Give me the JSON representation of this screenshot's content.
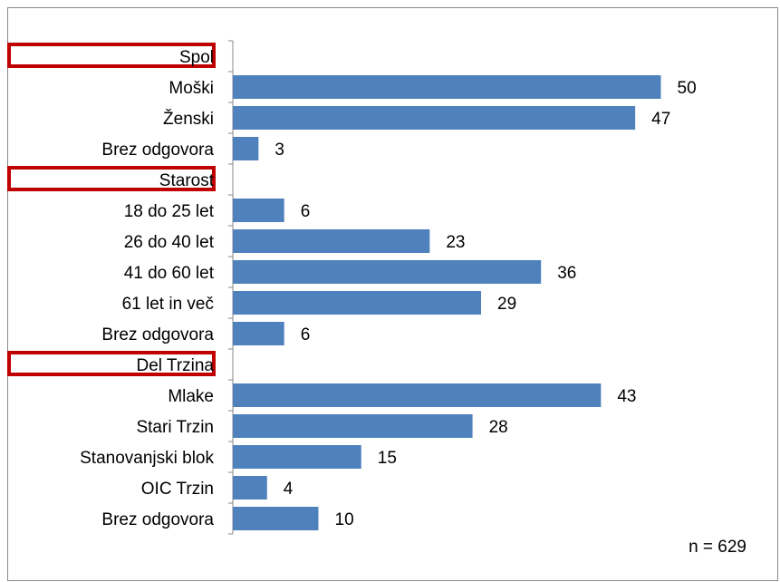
{
  "chart_data": {
    "type": "hbar",
    "categories": [
      "Spol",
      "Moški",
      "Ženski",
      "Brez odgovora",
      "Starost",
      "18 do 25 let",
      "26 do 40 let",
      "41 do 60 let",
      "61 let in več",
      "Brez odgovora",
      "Del Trzina",
      "Mlake",
      "Stari Trzin",
      "Stanovanjski blok",
      "OIC Trzin",
      "Brez odgovora"
    ],
    "values": [
      null,
      50,
      47,
      3,
      null,
      6,
      23,
      36,
      29,
      6,
      null,
      43,
      28,
      15,
      4,
      10
    ],
    "color": "#4f81bd",
    "header_box_color": "#c00000",
    "xlim": [
      0,
      60
    ],
    "annotation": "n = 629"
  }
}
